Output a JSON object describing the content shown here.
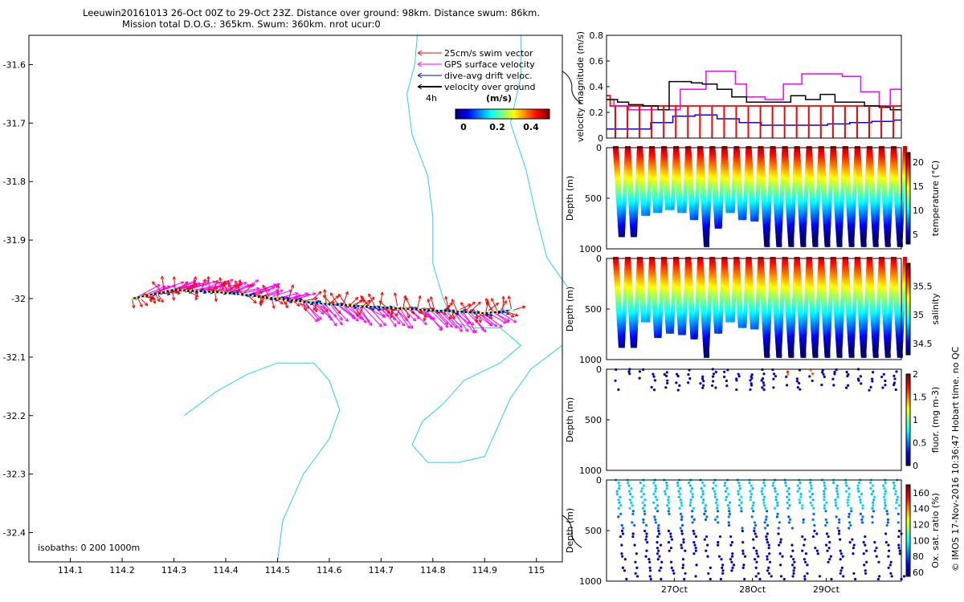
{
  "header": {
    "line1": "Leeuwin20161013 26-Oct 00Z to 29-Oct 23Z. Distance over ground: 98km. Distance swum: 86km.",
    "line2": "Mission total D.O.G.: 365km. Swum: 360km. nrot ucur:0"
  },
  "footer_note": "© IMOS 17-Nov-2016 10:36:47 Hobart time. no QC",
  "colors": {
    "coast": "#22d8e0",
    "swim": "#ff0000",
    "gps": "#ff00ff",
    "drift": "#0000ff",
    "ground": "#000000"
  },
  "chart_data": [
    {
      "type": "scatter",
      "name": "map",
      "xlim": [
        114.02,
        115.05
      ],
      "ylim": [
        -32.45,
        -31.55
      ],
      "x_ticks": [
        "114.1",
        "114.2",
        "114.3",
        "114.4",
        "114.5",
        "114.6",
        "114.7",
        "114.8",
        "114.9",
        "115"
      ],
      "y_ticks": [
        "-31.6",
        "-31.7",
        "-31.8",
        "-31.9",
        "-32",
        "-32.1",
        "-32.2",
        "-32.3",
        "-32.4"
      ],
      "legend": {
        "placement": "top-right",
        "entries": [
          {
            "label": "25cm/s swim vector",
            "color": "#ff0000"
          },
          {
            "label": "GPS surface velocity",
            "color": "#ff00ff"
          },
          {
            "label": "dive-avg drift veloc.",
            "color": "#0000ff"
          },
          {
            "label": "velocity over ground",
            "color": "#000000"
          }
        ],
        "time_label": "4h",
        "colorbar_title": "(m/s)",
        "colorbar_ticks": [
          "0",
          "0.2",
          "0.4"
        ]
      },
      "isobaths_text": "isobaths: 0   200  1000m",
      "track": [
        [
          114.22,
          -32.0
        ],
        [
          114.3,
          -31.985
        ],
        [
          114.4,
          -31.99
        ],
        [
          114.5,
          -32.0
        ],
        [
          114.6,
          -32.01
        ],
        [
          114.7,
          -32.015
        ],
        [
          114.8,
          -32.02
        ],
        [
          114.9,
          -32.025
        ],
        [
          114.95,
          -32.02
        ]
      ],
      "isobaths": [
        {
          "depth": 0,
          "points": [
            [
              114.97,
              -31.55
            ],
            [
              114.97,
              -31.62
            ],
            [
              114.95,
              -31.7
            ],
            [
              114.98,
              -31.78
            ],
            [
              115.0,
              -31.86
            ],
            [
              115.02,
              -31.93
            ],
            [
              115.06,
              -31.98
            ]
          ]
        },
        {
          "depth": 200,
          "points": [
            [
              114.77,
              -31.55
            ],
            [
              114.765,
              -31.6
            ],
            [
              114.75,
              -31.65
            ],
            [
              114.76,
              -31.72
            ],
            [
              114.79,
              -31.79
            ],
            [
              114.8,
              -31.86
            ],
            [
              114.8,
              -31.94
            ],
            [
              114.82,
              -32.0
            ],
            [
              114.84,
              -32.04
            ],
            [
              114.88,
              -32.05
            ],
            [
              114.93,
              -32.05
            ],
            [
              114.97,
              -32.08
            ],
            [
              114.93,
              -32.11
            ],
            [
              114.86,
              -32.14
            ],
            [
              114.82,
              -32.18
            ],
            [
              114.78,
              -32.21
            ],
            [
              114.76,
              -32.25
            ],
            [
              114.79,
              -32.28
            ],
            [
              114.85,
              -32.28
            ],
            [
              114.9,
              -32.27
            ],
            [
              114.92,
              -32.23
            ],
            [
              114.95,
              -32.17
            ],
            [
              114.99,
              -32.12
            ],
            [
              115.05,
              -32.08
            ]
          ]
        },
        {
          "depth": 1000,
          "points": [
            [
              114.5,
              -32.45
            ],
            [
              114.51,
              -32.38
            ],
            [
              114.55,
              -32.3
            ],
            [
              114.6,
              -32.24
            ],
            [
              114.62,
              -32.19
            ],
            [
              114.6,
              -32.14
            ],
            [
              114.57,
              -32.11
            ],
            [
              114.5,
              -32.11
            ],
            [
              114.44,
              -32.13
            ],
            [
              114.38,
              -32.16
            ],
            [
              114.32,
              -32.2
            ]
          ]
        }
      ]
    },
    {
      "type": "line",
      "name": "velocity",
      "ylabel": "velocity magnitude (m/s)",
      "ylim": [
        0,
        0.8
      ],
      "y_ticks": [
        "0",
        "0.2",
        "0.4",
        "0.6",
        "0.8"
      ],
      "xlim": [
        0,
        4
      ],
      "series": [
        {
          "color": "#ff0000",
          "x": [
            0,
            0.05,
            0.1,
            0.25,
            0.4,
            0.55,
            0.7,
            0.85,
            1.0,
            1.15,
            1.3,
            1.45,
            1.6,
            1.75,
            1.9,
            2.05,
            2.2,
            2.35,
            2.5,
            2.65,
            2.8,
            2.95,
            3.1,
            3.25,
            3.4,
            3.55,
            3.7,
            3.85,
            4.0
          ],
          "values": [
            0.33,
            0.25,
            0.25,
            0.25,
            0.25,
            0.25,
            0.25,
            0.25,
            0.25,
            0.25,
            0.25,
            0.25,
            0.25,
            0.25,
            0.25,
            0.25,
            0.25,
            0.25,
            0.25,
            0.25,
            0.25,
            0.25,
            0.25,
            0.25,
            0.25,
            0.25,
            0.25,
            0.25,
            0.25
          ]
        },
        {
          "color": "#ff00ff",
          "x": [
            0,
            0.1,
            0.3,
            0.6,
            0.85,
            1.0,
            1.15,
            1.35,
            1.55,
            1.75,
            1.9,
            2.0,
            2.15,
            2.4,
            2.65,
            3.0,
            3.2,
            3.45,
            3.7,
            3.85,
            4.0
          ],
          "values": [
            0.3,
            0.25,
            0.22,
            0.22,
            0.22,
            0.38,
            0.38,
            0.52,
            0.52,
            0.42,
            0.32,
            0.32,
            0.3,
            0.42,
            0.5,
            0.5,
            0.48,
            0.36,
            0.24,
            0.38,
            0.38
          ]
        },
        {
          "color": "#000000",
          "x": [
            0,
            0.15,
            0.3,
            0.5,
            0.7,
            0.85,
            1.0,
            1.15,
            1.3,
            1.5,
            1.7,
            1.9,
            2.1,
            2.3,
            2.5,
            2.7,
            2.9,
            3.1,
            3.3,
            3.5,
            3.7,
            3.85,
            4.0
          ],
          "values": [
            0.3,
            0.28,
            0.26,
            0.25,
            0.22,
            0.44,
            0.44,
            0.43,
            0.42,
            0.38,
            0.32,
            0.28,
            0.28,
            0.28,
            0.33,
            0.3,
            0.34,
            0.28,
            0.28,
            0.25,
            0.24,
            0.22,
            0.22
          ]
        },
        {
          "color": "#0000ff",
          "x": [
            0,
            0.3,
            0.6,
            0.9,
            1.2,
            1.5,
            1.8,
            2.1,
            2.4,
            2.7,
            3.0,
            3.3,
            3.6,
            3.9,
            4.0
          ],
          "values": [
            0.07,
            0.07,
            0.12,
            0.17,
            0.18,
            0.15,
            0.12,
            0.1,
            0.1,
            0.1,
            0.11,
            0.12,
            0.13,
            0.14,
            0.14
          ]
        }
      ]
    },
    {
      "type": "scatter",
      "name": "temperature",
      "ylabel": "Depth (m)",
      "y_ticks": [
        "0",
        "500",
        "1000"
      ],
      "colorbar_label": "temperature (°C)",
      "colorbar_ticks": [
        "5",
        "10",
        "15",
        "20"
      ],
      "clim": [
        3,
        22
      ]
    },
    {
      "type": "scatter",
      "name": "salinity",
      "ylabel": "Depth (m)",
      "y_ticks": [
        "0",
        "500",
        "1000"
      ],
      "colorbar_label": "salinity",
      "colorbar_ticks": [
        "34.5",
        "35",
        "35.5"
      ],
      "clim": [
        34.3,
        35.9
      ]
    },
    {
      "type": "scatter",
      "name": "fluorescence",
      "ylabel": "Depth (m)",
      "y_ticks": [
        "0",
        "500",
        "1000"
      ],
      "colorbar_label": "fluor. (mg m-3)",
      "colorbar_ticks": [
        "0",
        "0.5",
        "1",
        "1.5",
        "2"
      ],
      "clim": [
        0,
        2
      ]
    },
    {
      "type": "scatter",
      "name": "oxygen",
      "ylabel": "Depth (m)",
      "y_ticks": [
        "0",
        "500",
        "1000"
      ],
      "x_ticks": [
        "27Oct",
        "28Oct",
        "29Oct"
      ],
      "colorbar_label": "Ox. sat. ratio (%)",
      "colorbar_ticks": [
        "60",
        "80",
        "100",
        "120",
        "140",
        "160"
      ],
      "clim": [
        55,
        170
      ]
    }
  ]
}
